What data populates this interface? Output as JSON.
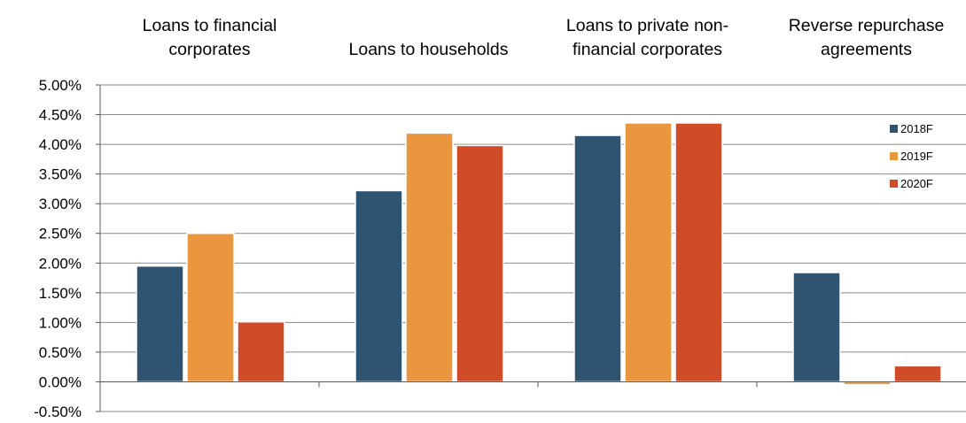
{
  "chart_data": {
    "type": "bar",
    "title": "",
    "xlabel": "",
    "ylabel": "",
    "categories": [
      "Loans to financial corporates",
      "Loans to households",
      "Loans to private non-financial corporates",
      "Reverse repurchase agreements"
    ],
    "category_label_lines": [
      [
        "Loans to financial",
        "corporates"
      ],
      [
        "Loans to households"
      ],
      [
        "Loans to private non-",
        "financial corporates"
      ],
      [
        "Reverse repurchase",
        "agreements"
      ]
    ],
    "category_labels_position": "top",
    "series": [
      {
        "name": "2018F",
        "color": "#2f5472",
        "values": [
          1.95,
          3.22,
          4.15,
          1.84
        ]
      },
      {
        "name": "2019F",
        "color": "#ea963e",
        "values": [
          2.5,
          4.19,
          4.36,
          -0.05
        ]
      },
      {
        "name": "2020F",
        "color": "#d04c29",
        "values": [
          1.01,
          3.98,
          4.36,
          0.27
        ]
      }
    ],
    "ylim": [
      -0.5,
      5.0
    ],
    "y_ticks": [
      -0.5,
      0.0,
      0.5,
      1.0,
      1.5,
      2.0,
      2.5,
      3.0,
      3.5,
      4.0,
      4.5,
      5.0
    ],
    "y_tick_labels": [
      "-0.50%",
      "0.00%",
      "0.50%",
      "1.00%",
      "1.50%",
      "2.00%",
      "2.50%",
      "3.00%",
      "3.50%",
      "4.00%",
      "4.50%",
      "5.00%"
    ],
    "grid": true,
    "legend_position": "right"
  }
}
